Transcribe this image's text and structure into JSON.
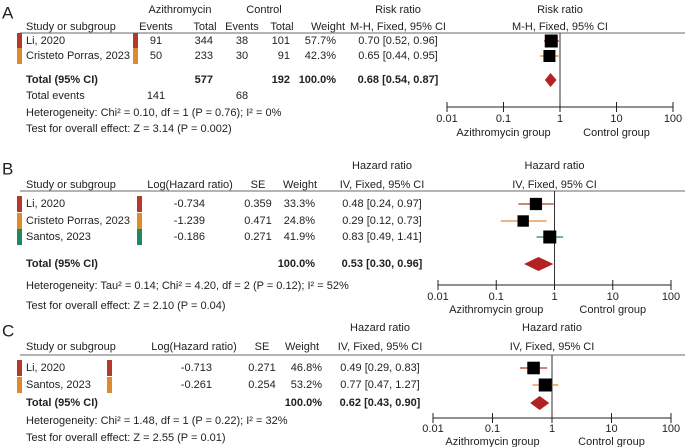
{
  "colors": {
    "study1": "#b5392a",
    "study2": "#e08a2e",
    "study3": "#1e8a5a",
    "diamond": "#b22222",
    "square": "#000000",
    "rule": "#888888"
  },
  "chart_data": [
    {
      "type": "forest",
      "panel": "A",
      "group_headers": [
        "Azithromycin",
        "Control",
        "Risk ratio"
      ],
      "columns": [
        "Study or subgroup",
        "Events",
        "Total",
        "Events",
        "Total",
        "Weight",
        "M-H, Fixed, 95% CI"
      ],
      "studies": [
        {
          "name": "Li, 2020",
          "cells": [
            "91",
            "344",
            "38",
            "101",
            "57.7%",
            "0.70 [0.52, 0.96]"
          ],
          "est": 0.7,
          "lo": 0.52,
          "hi": 0.96,
          "weight": 57.7,
          "color_key": "study1"
        },
        {
          "name": "Cristeto Porras, 2023",
          "cells": [
            "50",
            "233",
            "30",
            "91",
            "42.3%",
            "0.65 [0.44, 0.95]"
          ],
          "est": 0.65,
          "lo": 0.44,
          "hi": 0.95,
          "weight": 42.3,
          "color_key": "study2"
        }
      ],
      "total": {
        "label": "Total (95% CI)",
        "cells": [
          "",
          "577",
          "",
          "192",
          "100.0%",
          "0.68 [0.54, 0.87]"
        ],
        "est": 0.68,
        "lo": 0.54,
        "hi": 0.87
      },
      "total_events": {
        "label": "Total events",
        "cells": [
          "141",
          "",
          "68"
        ]
      },
      "heterogeneity": "Heterogeneity: Chi² = 0.10, df = 1 (P = 0.76); I² = 0%",
      "overall": "Test for overall effect: Z = 3.14 (P = 0.002)",
      "plot": {
        "title": "Risk ratio",
        "subtitle": "M-H, Fixed, 95% CI",
        "scale": "log",
        "xlim": [
          0.01,
          100
        ],
        "ticks": [
          "0.01",
          "0.1",
          "1",
          "10",
          "100"
        ],
        "left_label": "Azithromycin group",
        "right_label": "Control group"
      }
    },
    {
      "type": "forest",
      "panel": "B",
      "group_headers": [
        "Hazard ratio"
      ],
      "columns": [
        "Study or subgroup",
        "Log(Hazard ratio)",
        "SE",
        "Weight",
        "IV, Fixed, 95% CI"
      ],
      "studies": [
        {
          "name": "Li, 2020",
          "cells": [
            "-0.734",
            "0.359",
            "33.3%",
            "0.48 [0.24, 0.97]"
          ],
          "est": 0.48,
          "lo": 0.24,
          "hi": 0.97,
          "weight": 33.3,
          "color_key": "study1"
        },
        {
          "name": "Cristeto Porras, 2023",
          "cells": [
            "-1.239",
            "0.471",
            "24.8%",
            "0.29 [0.12, 0.73]"
          ],
          "est": 0.29,
          "lo": 0.12,
          "hi": 0.73,
          "weight": 24.8,
          "color_key": "study2"
        },
        {
          "name": "Santos, 2023",
          "cells": [
            "-0.186",
            "0.271",
            "41.9%",
            "0.83 [0.49, 1.41]"
          ],
          "est": 0.83,
          "lo": 0.49,
          "hi": 1.41,
          "weight": 41.9,
          "color_key": "study3"
        }
      ],
      "total": {
        "label": "Total (95% CI)",
        "cells": [
          "",
          "",
          "100.0%",
          "0.53 [0.30, 0.96]"
        ],
        "est": 0.53,
        "lo": 0.3,
        "hi": 0.96
      },
      "heterogeneity": "Heterogeneity: Tau² = 0.14; Chi² = 4.20, df = 2 (P = 0.12); I² = 52%",
      "overall": "Test for overall effect: Z = 2.10 (P = 0.04)",
      "plot": {
        "title": "Hazard ratio",
        "subtitle": "IV, Fixed, 95% CI",
        "scale": "log",
        "xlim": [
          0.01,
          100
        ],
        "ticks": [
          "0.01",
          "0.1",
          "1",
          "10",
          "100"
        ],
        "left_label": "Azithromycin group",
        "right_label": "Control group"
      }
    },
    {
      "type": "forest",
      "panel": "C",
      "group_headers": [
        "Hazard ratio"
      ],
      "columns": [
        "Study or subgroup",
        "Log(Hazard ratio)",
        "SE",
        "Weight",
        "IV, Fixed, 95% CI"
      ],
      "studies": [
        {
          "name": "Li, 2020",
          "cells": [
            "-0.713",
            "0.271",
            "46.8%",
            "0.49 [0.29, 0.83]"
          ],
          "est": 0.49,
          "lo": 0.29,
          "hi": 0.83,
          "weight": 46.8,
          "color_key": "study1"
        },
        {
          "name": "Santos, 2023",
          "cells": [
            "-0.261",
            "0.254",
            "53.2%",
            "0.77 [0.47, 1.27]"
          ],
          "est": 0.77,
          "lo": 0.47,
          "hi": 1.27,
          "weight": 53.2,
          "color_key": "study2"
        }
      ],
      "total": {
        "label": "Total (95% CI)",
        "cells": [
          "",
          "",
          "100.0%",
          "0.62 [0.43, 0.90]"
        ],
        "est": 0.62,
        "lo": 0.43,
        "hi": 0.9
      },
      "heterogeneity": "Heterogeneity: Chi² = 1.48, df = 1 (P = 0.22); I² = 32%",
      "overall": "Test for overall effect: Z = 2.55 (P = 0.01)",
      "plot": {
        "title": "Hazard ratio",
        "subtitle": "IV, Fixed, 95% CI",
        "scale": "log",
        "xlim": [
          0.01,
          100
        ],
        "ticks": [
          "0.01",
          "0.1",
          "1",
          "10",
          "100"
        ],
        "left_label": "Azithromycin group",
        "right_label": "Control group"
      }
    }
  ]
}
